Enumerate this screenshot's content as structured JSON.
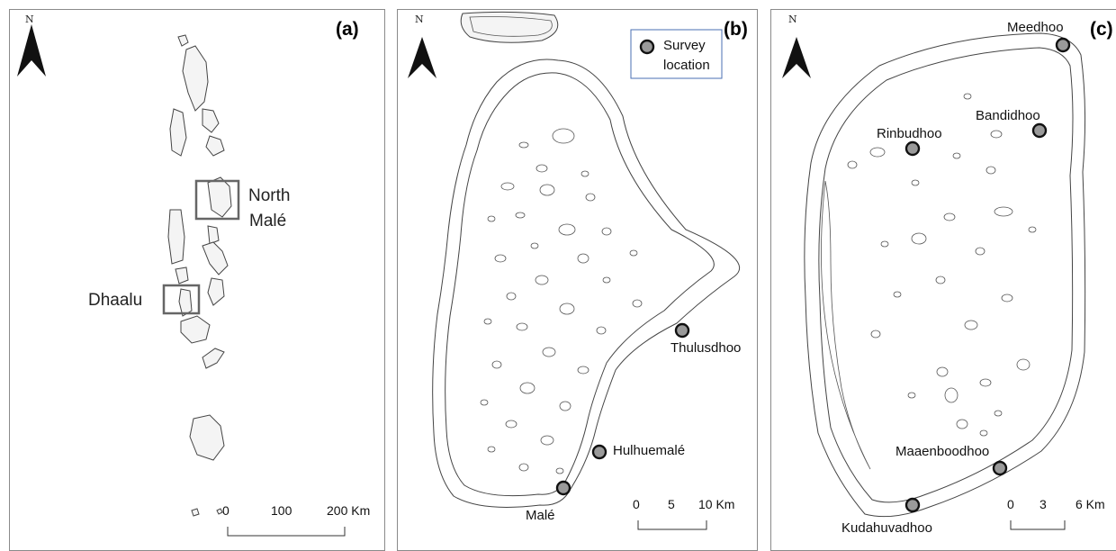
{
  "panels": [
    {
      "id": "a",
      "label": "(a)",
      "north": "N",
      "regions": [
        "North",
        "Malé",
        "Dhaalu"
      ],
      "scale": [
        "0",
        "100",
        "200 Km"
      ]
    },
    {
      "id": "b",
      "label": "(b)",
      "north": "N",
      "legend": {
        "line1": "Survey",
        "line2": "location"
      },
      "sites": [
        "Thulusdhoo",
        "Hulhuemalé",
        "Malé"
      ],
      "scale": [
        "0",
        "5",
        "10 Km"
      ]
    },
    {
      "id": "c",
      "label": "(c)",
      "north": "N",
      "sites": [
        "Meedhoo",
        "Rinbudhoo",
        "Bandidhoo",
        "Maaenboodhoo",
        "Kudahuvadhoo"
      ],
      "scale": [
        "0",
        "3",
        "6 Km"
      ]
    }
  ],
  "colors": {
    "marker_fill": "#9a9a9a",
    "marker_stroke": "#111111",
    "box": "#666666",
    "legend_border": "#4a6fb3"
  }
}
